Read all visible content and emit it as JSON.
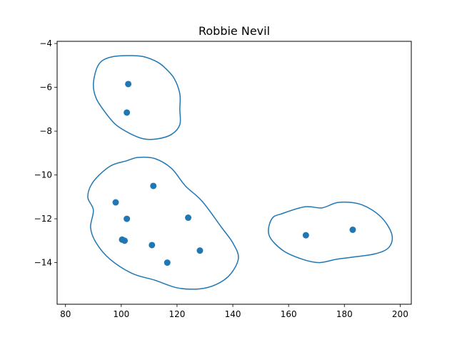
{
  "chart_data": {
    "type": "scatter",
    "title": "Robbie Nevil",
    "xlabel": "",
    "ylabel": "",
    "xlim": [
      77,
      204
    ],
    "ylim": [
      -15.9,
      -3.9
    ],
    "x_ticks": [
      80,
      100,
      120,
      140,
      160,
      180,
      200
    ],
    "y_ticks": [
      -4,
      -6,
      -8,
      -10,
      -12,
      -14
    ],
    "grid": false,
    "colors": {
      "accent": "#1f77b4",
      "axes": "#000000",
      "background": "#ffffff"
    },
    "points": [
      {
        "x": 102.5,
        "y": -5.85
      },
      {
        "x": 102.0,
        "y": -7.15
      },
      {
        "x": 111.5,
        "y": -10.5
      },
      {
        "x": 98.0,
        "y": -11.25
      },
      {
        "x": 102.0,
        "y": -12.0
      },
      {
        "x": 124.0,
        "y": -11.95
      },
      {
        "x": 100.3,
        "y": -12.95
      },
      {
        "x": 101.2,
        "y": -13.0
      },
      {
        "x": 111.0,
        "y": -13.2
      },
      {
        "x": 128.2,
        "y": -13.45
      },
      {
        "x": 116.5,
        "y": -14.0
      },
      {
        "x": 166.2,
        "y": -12.75
      },
      {
        "x": 183.0,
        "y": -12.5
      }
    ],
    "outlines": [
      [
        [
          97,
          -4.6
        ],
        [
          103,
          -4.55
        ],
        [
          108,
          -4.6
        ],
        [
          113,
          -4.85
        ],
        [
          116,
          -5.15
        ],
        [
          119,
          -5.6
        ],
        [
          121,
          -6.3
        ],
        [
          121,
          -7.0
        ],
        [
          121,
          -7.7
        ],
        [
          118,
          -8.15
        ],
        [
          113,
          -8.35
        ],
        [
          108,
          -8.35
        ],
        [
          103,
          -8.1
        ],
        [
          98,
          -7.7
        ],
        [
          94,
          -7.1
        ],
        [
          91,
          -6.5
        ],
        [
          90,
          -5.9
        ],
        [
          91,
          -5.2
        ],
        [
          93,
          -4.8
        ]
      ],
      [
        [
          96,
          -9.6
        ],
        [
          102,
          -9.35
        ],
        [
          106,
          -9.2
        ],
        [
          112,
          -9.25
        ],
        [
          118,
          -9.7
        ],
        [
          123,
          -10.5
        ],
        [
          129,
          -11.2
        ],
        [
          136,
          -12.4
        ],
        [
          140,
          -13.1
        ],
        [
          142,
          -13.8
        ],
        [
          139,
          -14.55
        ],
        [
          134,
          -15.0
        ],
        [
          128,
          -15.2
        ],
        [
          120,
          -15.15
        ],
        [
          112,
          -14.8
        ],
        [
          104,
          -14.5
        ],
        [
          96,
          -13.85
        ],
        [
          91,
          -13.1
        ],
        [
          89,
          -12.4
        ],
        [
          90,
          -11.6
        ],
        [
          88,
          -11.0
        ],
        [
          90,
          -10.3
        ]
      ],
      [
        [
          158,
          -11.75
        ],
        [
          166,
          -11.45
        ],
        [
          172,
          -11.5
        ],
        [
          178,
          -11.25
        ],
        [
          186,
          -11.35
        ],
        [
          193,
          -11.9
        ],
        [
          197,
          -12.7
        ],
        [
          196,
          -13.3
        ],
        [
          191,
          -13.6
        ],
        [
          183,
          -13.75
        ],
        [
          177,
          -13.85
        ],
        [
          171,
          -14.0
        ],
        [
          165,
          -13.85
        ],
        [
          158,
          -13.45
        ],
        [
          153,
          -12.75
        ],
        [
          154,
          -12.0
        ]
      ]
    ]
  }
}
